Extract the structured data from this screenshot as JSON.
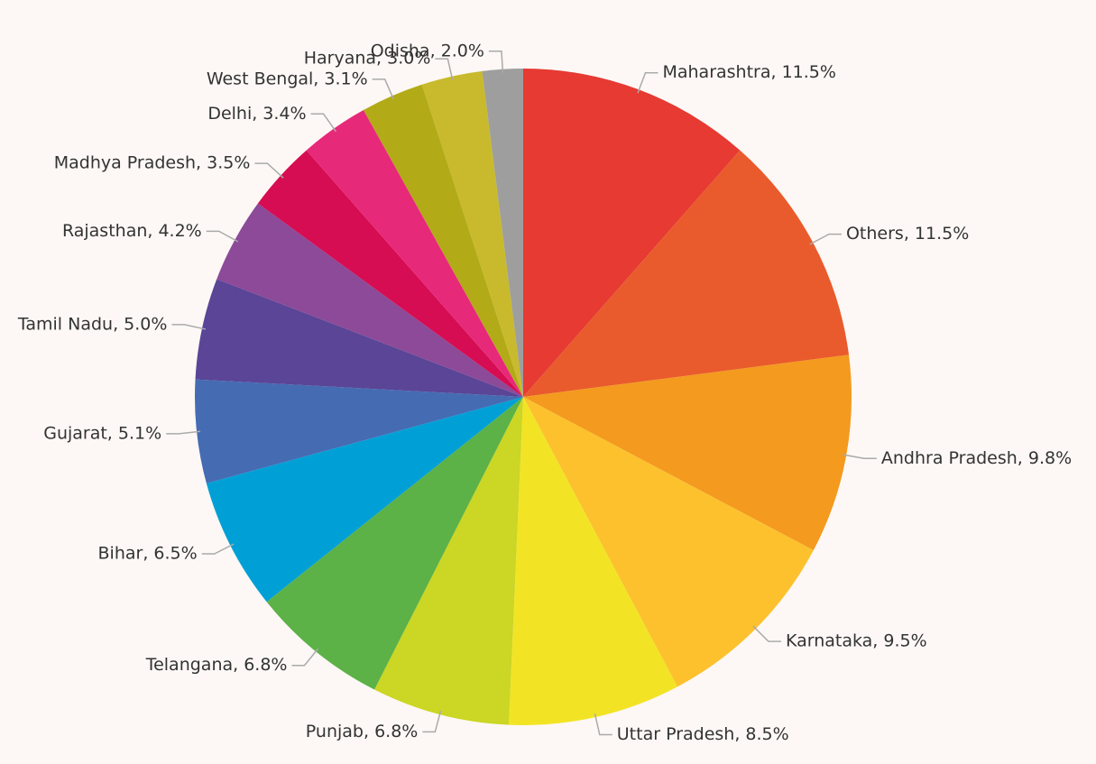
{
  "chart_data": {
    "type": "pie",
    "values": [
      11.5,
      11.5,
      9.8,
      9.5,
      8.5,
      6.8,
      6.8,
      6.5,
      5.1,
      5.0,
      4.2,
      3.5,
      3.4,
      3.1,
      3.0,
      2.0
    ],
    "value_labels": [
      "Maharashtra, 11.5%",
      "Others, 11.5%",
      "Andhra Pradesh, 9.8%",
      "Karnataka, 9.5%",
      "Uttar Pradesh, 8.5%",
      "Punjab, 6.8%",
      "Telangana, 6.8%",
      "Bihar, 6.5%",
      "Gujarat, 5.1%",
      "Tamil Nadu, 5.0%",
      "Rajasthan, 4.2%",
      "Madhya Pradesh, 3.5%",
      "Delhi, 3.4%",
      "West Bengal, 3.1%",
      "Haryana, 3.0%",
      "Odisha, 2.0%"
    ],
    "colors": [
      "#e63a33",
      "#e95b2c",
      "#f39a1f",
      "#fcc12d",
      "#f2e424",
      "#cbd625",
      "#5cb147",
      "#00a0d6",
      "#456bb3",
      "#5a4596",
      "#8c4a99",
      "#d60d52",
      "#e7297a",
      "#b2aa17",
      "#c8ba2c",
      "#9e9e9e"
    ]
  }
}
